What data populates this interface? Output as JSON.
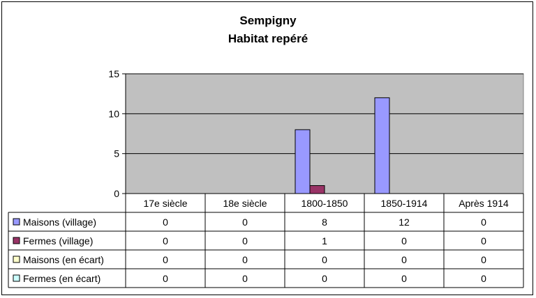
{
  "chart_data": {
    "type": "bar",
    "title_lines": [
      "Sempigny",
      "Habitat repéré"
    ],
    "categories": [
      "17e siècle",
      "18e siècle",
      "1800-1850",
      "1850-1914",
      "Après 1914"
    ],
    "ylim": [
      0,
      15
    ],
    "yticks": [
      0,
      5,
      10,
      15
    ],
    "grid": true,
    "legend": "data-table",
    "series": [
      {
        "name": "Maisons (village)",
        "color": "#9999ff",
        "values": [
          0,
          0,
          8,
          12,
          0
        ]
      },
      {
        "name": "Fermes (village)",
        "color": "#993366",
        "values": [
          0,
          0,
          1,
          0,
          0
        ]
      },
      {
        "name": "Maisons (en écart)",
        "color": "#ffffcc",
        "values": [
          0,
          0,
          0,
          0,
          0
        ]
      },
      {
        "name": "Fermes (en écart)",
        "color": "#ccffff",
        "values": [
          0,
          0,
          0,
          0,
          0
        ]
      }
    ],
    "plot_background": "#c0c0c0"
  }
}
